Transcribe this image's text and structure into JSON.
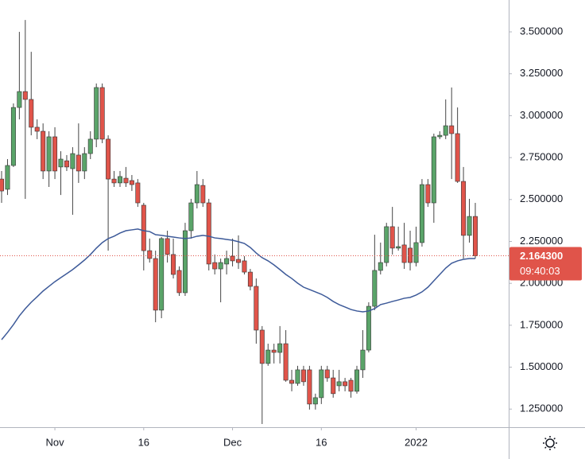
{
  "chart_data": {
    "type": "candlestick",
    "x": [
      0,
      1,
      2,
      3,
      4,
      5,
      6,
      7,
      8,
      9,
      10,
      11,
      12,
      13,
      14,
      15,
      16,
      17,
      18,
      19,
      20,
      21,
      22,
      23,
      24,
      25,
      26,
      27,
      28,
      29,
      30,
      31,
      32,
      33,
      34,
      35,
      36,
      37,
      38,
      39,
      40,
      41,
      42,
      43,
      44,
      45,
      46,
      47,
      48,
      49,
      50,
      51,
      52,
      53,
      54,
      55,
      56,
      57,
      58,
      59,
      60,
      61,
      62,
      63,
      64,
      65,
      66,
      67,
      68,
      69,
      70,
      71,
      72,
      73,
      74,
      75,
      76,
      77,
      78,
      79,
      80
    ],
    "open": [
      2.622,
      2.561,
      2.703,
      3.049,
      3.144,
      3.097,
      2.931,
      2.907,
      2.67,
      2.874,
      2.694,
      2.731,
      2.684,
      2.765,
      2.67,
      2.774,
      2.86,
      3.168,
      2.86,
      2.622,
      2.599,
      2.627,
      2.613,
      2.599,
      2.466,
      2.195,
      2.148,
      1.84,
      2.267,
      2.172,
      2.077,
      1.944,
      2.314,
      2.48,
      2.584,
      2.48,
      2.124,
      2.086,
      2.115,
      2.162,
      2.143,
      2.134,
      2.067,
      1.982,
      1.721,
      1.522,
      1.602,
      1.588,
      1.64,
      1.422,
      1.403,
      1.484,
      1.484,
      1.28,
      1.318,
      1.484,
      1.436,
      1.389,
      1.413,
      1.422,
      1.356,
      1.484,
      1.602,
      1.863,
      2.077,
      2.124,
      2.338,
      2.21,
      2.229,
      2.21,
      2.124,
      2.243,
      2.589,
      2.48,
      2.874,
      2.883,
      2.94,
      2.893,
      2.608,
      2.286,
      2.399
    ],
    "high": [
      2.67,
      2.741,
      3.073,
      3.5,
      3.571,
      3.381,
      2.978,
      2.954,
      2.907,
      2.931,
      2.788,
      2.765,
      2.812,
      2.954,
      2.812,
      2.907,
      3.192,
      3.192,
      2.883,
      2.67,
      2.67,
      2.694,
      2.646,
      2.622,
      2.48,
      2.267,
      2.195,
      2.276,
      2.314,
      2.267,
      2.101,
      2.361,
      2.504,
      2.67,
      2.622,
      2.504,
      2.172,
      2.148,
      2.195,
      2.267,
      2.286,
      2.162,
      2.086,
      2.029,
      1.745,
      1.64,
      1.64,
      1.745,
      1.721,
      1.484,
      1.508,
      1.508,
      1.508,
      1.342,
      1.508,
      1.508,
      1.484,
      1.484,
      1.436,
      1.436,
      1.508,
      1.721,
      1.887,
      2.29,
      2.243,
      2.361,
      2.456,
      2.338,
      2.361,
      2.314,
      2.338,
      2.622,
      2.622,
      2.893,
      2.907,
      3.097,
      3.168,
      3.049,
      2.694,
      2.504,
      2.48
    ],
    "low": [
      2.48,
      2.527,
      2.694,
      2.978,
      2.504,
      2.883,
      2.86,
      2.622,
      2.575,
      2.622,
      2.527,
      2.67,
      2.409,
      2.599,
      2.622,
      2.741,
      2.812,
      2.836,
      2.195,
      2.575,
      2.575,
      2.575,
      2.551,
      2.456,
      2.077,
      2.124,
      1.768,
      1.792,
      2.124,
      2.029,
      1.925,
      1.925,
      2.267,
      2.447,
      2.456,
      2.077,
      2.053,
      1.887,
      2.053,
      2.101,
      2.086,
      2.053,
      1.958,
      1.64,
      1.161,
      1.508,
      1.522,
      1.522,
      1.413,
      1.356,
      1.389,
      1.389,
      1.247,
      1.247,
      1.28,
      1.413,
      1.318,
      1.356,
      1.356,
      1.318,
      1.342,
      1.436,
      1.588,
      1.84,
      2.053,
      2.101,
      2.172,
      2.195,
      2.086,
      2.077,
      2.101,
      2.219,
      2.456,
      2.361,
      2.86,
      2.86,
      2.622,
      2.599,
      2.148,
      2.243,
      2.148
    ],
    "close": [
      2.551,
      2.703,
      3.049,
      3.144,
      3.097,
      2.931,
      2.907,
      2.67,
      2.874,
      2.67,
      2.741,
      2.694,
      2.774,
      2.67,
      2.774,
      2.86,
      3.168,
      2.86,
      2.622,
      2.599,
      2.637,
      2.599,
      2.589,
      2.48,
      2.195,
      2.148,
      1.84,
      2.267,
      2.172,
      2.053,
      1.944,
      2.314,
      2.48,
      2.589,
      2.48,
      2.115,
      2.086,
      2.124,
      2.148,
      2.134,
      2.124,
      2.067,
      1.982,
      1.721,
      1.522,
      1.602,
      1.588,
      1.64,
      1.422,
      1.403,
      1.484,
      1.413,
      1.28,
      1.318,
      1.484,
      1.436,
      1.342,
      1.413,
      1.389,
      1.356,
      1.484,
      1.602,
      1.863,
      2.077,
      2.124,
      2.338,
      2.21,
      2.219,
      2.124,
      2.124,
      2.243,
      2.589,
      2.48,
      2.874,
      2.883,
      2.94,
      2.893,
      2.608,
      2.286,
      2.399,
      2.1643
    ],
    "up_color": "#5aa469",
    "down_color": "#e0544a",
    "overlay": {
      "type": "line",
      "color": "#3d5a99",
      "values": [
        1.664,
        1.707,
        1.754,
        1.806,
        1.849,
        1.887,
        1.92,
        1.954,
        1.982,
        2.01,
        2.034,
        2.058,
        2.082,
        2.11,
        2.139,
        2.172,
        2.21,
        2.243,
        2.267,
        2.281,
        2.3,
        2.314,
        2.319,
        2.324,
        2.314,
        2.309,
        2.29,
        2.286,
        2.281,
        2.276,
        2.271,
        2.267,
        2.271,
        2.281,
        2.286,
        2.281,
        2.271,
        2.267,
        2.262,
        2.257,
        2.248,
        2.238,
        2.214,
        2.181,
        2.153,
        2.134,
        2.11,
        2.082,
        2.053,
        2.029,
        2.001,
        1.977,
        1.963,
        1.949,
        1.935,
        1.916,
        1.892,
        1.873,
        1.859,
        1.844,
        1.835,
        1.83,
        1.835,
        1.849,
        1.873,
        1.882,
        1.892,
        1.901,
        1.911,
        1.916,
        1.93,
        1.949,
        1.977,
        2.015,
        2.053,
        2.091,
        2.12,
        2.134,
        2.143,
        2.148,
        2.148
      ]
    },
    "last_price": {
      "value": 2.1643,
      "label": "2.164300"
    },
    "countdown": "09:40:03",
    "xlim": [
      -0.27,
      85.64
    ],
    "xticks": [
      {
        "value": 9,
        "label": "Nov"
      },
      {
        "value": 24,
        "label": "16"
      },
      {
        "value": 39,
        "label": "Dec"
      },
      {
        "value": 54,
        "label": "16"
      },
      {
        "value": 70,
        "label": "2022"
      }
    ],
    "ylim": [
      1.142,
      3.69
    ],
    "yticks": [
      {
        "value": 1.25,
        "label": "1.250000"
      },
      {
        "value": 1.5,
        "label": "1.500000"
      },
      {
        "value": 1.75,
        "label": "1.750000"
      },
      {
        "value": 2.0,
        "label": "2.000000"
      },
      {
        "value": 2.25,
        "label": "2.250000"
      },
      {
        "value": 2.5,
        "label": "2.500000"
      },
      {
        "value": 2.75,
        "label": "2.750000"
      },
      {
        "value": 3.0,
        "label": "3.000000"
      },
      {
        "value": 3.25,
        "label": "3.250000"
      },
      {
        "value": 3.5,
        "label": "3.500000"
      }
    ],
    "grid": false
  }
}
